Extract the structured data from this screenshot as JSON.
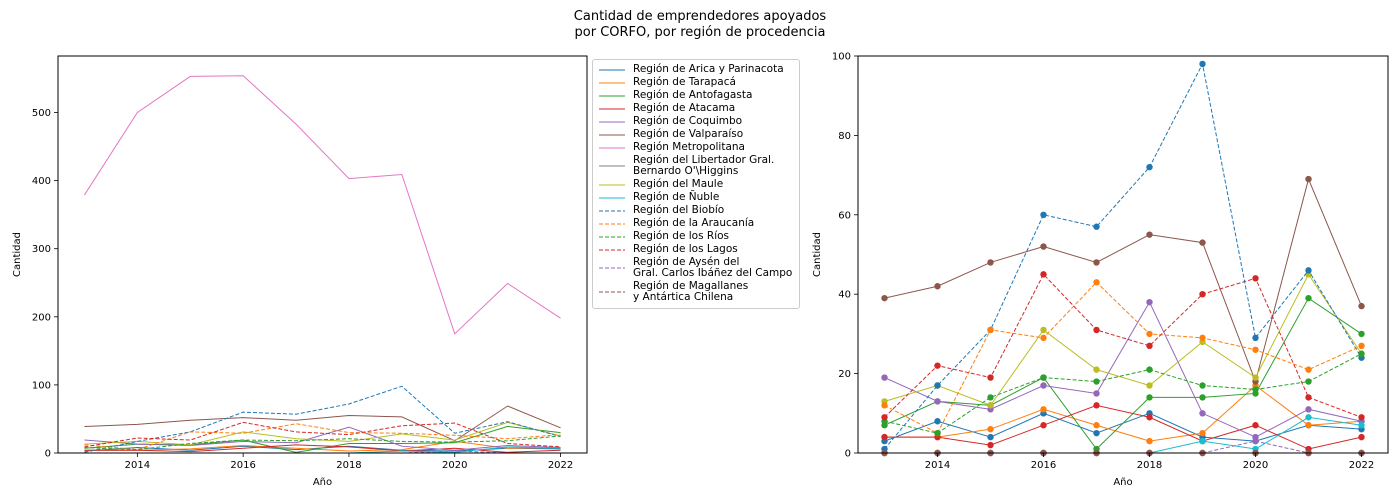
{
  "figure": {
    "title": "Cantidad de emprendedores apoyados\npor CORFO, por región de procedencia"
  },
  "chart_data": [
    {
      "type": "line",
      "title": "",
      "xlabel": "Año",
      "ylabel": "Cantidad",
      "xlim": [
        2012.5,
        2022.5
      ],
      "ylim": [
        0,
        583
      ],
      "xticks": [
        2014,
        2016,
        2018,
        2020,
        2022
      ],
      "yticks": [
        0,
        100,
        200,
        300,
        400,
        500
      ],
      "grid": false,
      "markers": false,
      "legend": "outside-right",
      "x": [
        2013,
        2014,
        2015,
        2016,
        2017,
        2018,
        2019,
        2020,
        2021,
        2022
      ],
      "series": [
        {
          "name": "Región de Arica y Parinacota",
          "color": "#1f77b4",
          "dash": "solid",
          "values": [
            3,
            8,
            4,
            10,
            5,
            10,
            4,
            3,
            7,
            6
          ]
        },
        {
          "name": "Región de Tarapacá",
          "color": "#ff7f0e",
          "dash": "solid",
          "values": [
            4,
            4,
            6,
            11,
            7,
            3,
            5,
            17,
            7,
            8
          ]
        },
        {
          "name": "Región de Antofagasta",
          "color": "#2ca02c",
          "dash": "solid",
          "values": [
            7,
            13,
            12,
            19,
            1,
            14,
            14,
            15,
            39,
            30
          ]
        },
        {
          "name": "Región de Atacama",
          "color": "#d62728",
          "dash": "solid",
          "values": [
            4,
            4,
            2,
            7,
            12,
            9,
            3,
            7,
            1,
            4
          ]
        },
        {
          "name": "Región de Coquimbo",
          "color": "#9467bd",
          "dash": "solid",
          "values": [
            19,
            13,
            11,
            17,
            15,
            38,
            10,
            4,
            11,
            8
          ]
        },
        {
          "name": "Región de Valparaíso",
          "color": "#8c564b",
          "dash": "solid",
          "values": [
            39,
            42,
            48,
            52,
            48,
            55,
            53,
            18,
            69,
            37
          ]
        },
        {
          "name": "Región Metropolitana",
          "color": "#e377c2",
          "dash": "solid",
          "values": [
            379,
            500,
            553,
            554,
            483,
            403,
            409,
            175,
            249,
            198
          ]
        },
        {
          "name": "Región del Libertador Gral.\nBernardo O'\\Higgins",
          "color": "#7f7f7f",
          "dash": "solid",
          "values": [
            0,
            0,
            0,
            0,
            0,
            0,
            0,
            0,
            0,
            0
          ]
        },
        {
          "name": "Región del Maule",
          "color": "#bcbd22",
          "dash": "solid",
          "values": [
            13,
            17,
            12,
            31,
            21,
            17,
            28,
            19,
            45,
            25
          ]
        },
        {
          "name": "Región de Ñuble",
          "color": "#17becf",
          "dash": "solid",
          "values": [
            0,
            0,
            0,
            0,
            0,
            0,
            3,
            1,
            9,
            7
          ]
        },
        {
          "name": "Región del Biobío",
          "color": "#1f77b4",
          "dash": "dashed",
          "values": [
            1,
            17,
            31,
            60,
            57,
            72,
            98,
            29,
            46,
            24
          ]
        },
        {
          "name": "Región de la Araucanía",
          "color": "#ff7f0e",
          "dash": "dashed",
          "values": [
            12,
            5,
            31,
            29,
            43,
            30,
            29,
            26,
            21,
            27
          ]
        },
        {
          "name": "Región de los Ríos",
          "color": "#2ca02c",
          "dash": "dashed",
          "values": [
            8,
            5,
            14,
            19,
            18,
            21,
            17,
            16,
            18,
            25
          ]
        },
        {
          "name": "Región de los Lagos",
          "color": "#d62728",
          "dash": "dashed",
          "values": [
            9,
            22,
            19,
            45,
            31,
            27,
            40,
            44,
            14,
            9
          ]
        },
        {
          "name": "Región de Aysén del\nGral. Carlos Ibáñez del Campo",
          "color": "#9467bd",
          "dash": "dashed",
          "values": [
            0,
            0,
            0,
            0,
            0,
            0,
            0,
            3,
            0,
            0
          ]
        },
        {
          "name": "Región de Magallanes\ny Antártica Chilena",
          "color": "#8c564b",
          "dash": "dashed",
          "values": [
            0,
            0,
            0,
            0,
            0,
            0,
            0,
            0,
            0,
            0
          ]
        }
      ]
    },
    {
      "type": "line",
      "title": "",
      "xlabel": "Año",
      "ylabel": "Cantidad",
      "xlim": [
        2012.5,
        2022.5
      ],
      "ylim": [
        0,
        100
      ],
      "xticks": [
        2014,
        2016,
        2018,
        2020,
        2022
      ],
      "yticks": [
        0,
        20,
        40,
        60,
        80,
        100
      ],
      "grid": false,
      "markers": true,
      "note_series": "same series as first chart excluding Región Metropolitana",
      "exclude": [
        "Región Metropolitana"
      ]
    }
  ]
}
